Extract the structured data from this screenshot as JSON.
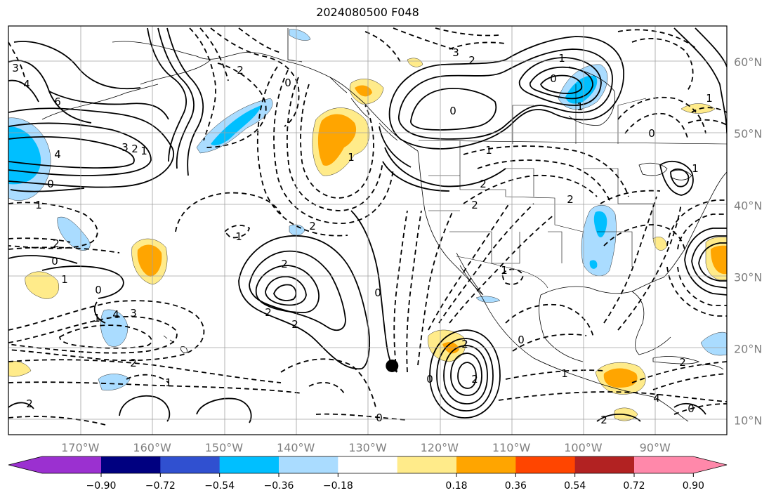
{
  "title": "2024080500 F048",
  "map": {
    "lon_ticks": [
      "170°W",
      "160°W",
      "150°W",
      "140°W",
      "130°W",
      "120°W",
      "110°W",
      "100°W",
      "90°W"
    ],
    "lat_ticks": [
      "60°N",
      "50°N",
      "40°N",
      "30°N",
      "20°N",
      "10°N"
    ],
    "extent": {
      "lon_min": -180,
      "lon_max": -80,
      "lat_min": 8,
      "lat_max": 65
    },
    "grid": true,
    "marker": {
      "lon": -126.6,
      "lat": 17.6,
      "label": ""
    },
    "contour_labels": [
      "3",
      "4",
      "6",
      "4",
      "3",
      "2",
      "1",
      "0",
      "1",
      "2",
      "0",
      "1",
      "0",
      "1",
      "4",
      "3",
      "2",
      "1",
      "2",
      "1",
      "2",
      "0",
      "2",
      "2",
      "2",
      "0",
      "1",
      "2",
      "3",
      "2",
      "1",
      "0",
      "1",
      "0",
      "1",
      "2",
      "2",
      "2",
      "1",
      "0",
      "2",
      "1",
      "0",
      "0",
      "2",
      "4",
      "0",
      "2",
      "0",
      "1",
      "2",
      "1"
    ]
  },
  "colorbar": {
    "ticks": [
      "−0.90",
      "−0.72",
      "−0.54",
      "−0.36",
      "−0.18",
      "0.18",
      "0.36",
      "0.54",
      "0.72",
      "0.90"
    ],
    "colors": [
      "#9b30d0",
      "#000080",
      "#3050d0",
      "#00bfff",
      "#aadcff",
      "#ffffff",
      "#ffeb8a",
      "#ffa500",
      "#ff4500",
      "#b22222",
      "#ff88aa"
    ]
  }
}
